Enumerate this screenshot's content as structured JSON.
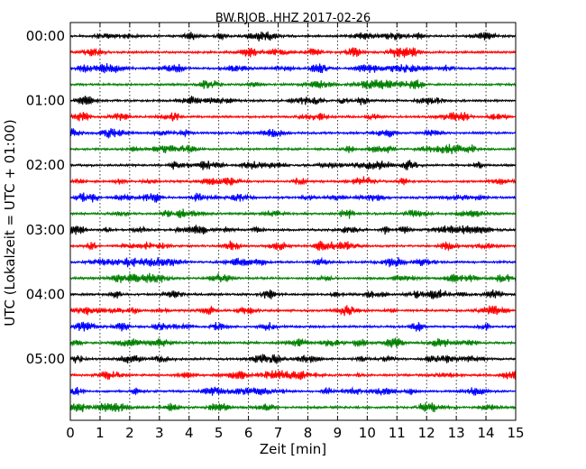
{
  "chart_data": {
    "type": "line",
    "title": "BW.RJOB..HHZ 2017-02-26",
    "xlabel": "Zeit  [min]",
    "ylabel": "UTC (Lokalzeit = UTC + 01:00)",
    "xlim": [
      0,
      15
    ],
    "x_ticks": [
      "0",
      "1",
      "2",
      "3",
      "4",
      "5",
      "6",
      "7",
      "8",
      "9",
      "10",
      "11",
      "12",
      "13",
      "14",
      "15"
    ],
    "y_ticks": [
      "00:00",
      "01:00",
      "02:00",
      "03:00",
      "04:00",
      "05:00"
    ],
    "grid": "vertical dotted at each minute",
    "trace_interval_min": 15,
    "trace_count": 24,
    "trace_colors": [
      "#000000",
      "#ff0000",
      "#0000ff",
      "#008000"
    ]
  }
}
